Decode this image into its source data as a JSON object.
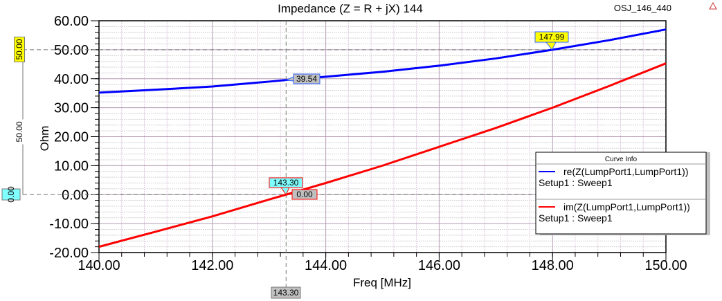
{
  "header": {
    "project": "OSJ_146_440",
    "logo_icon": "ansoft-logo-icon"
  },
  "chart_data": {
    "type": "line",
    "title": "Impedance (Z = R + jX) 144",
    "xlabel": "Freq [MHz]",
    "ylabel": "Ohm",
    "xlim": [
      140,
      150
    ],
    "ylim": [
      -20,
      60
    ],
    "xticks": [
      "140.00",
      "142.00",
      "144.00",
      "146.00",
      "148.00",
      "150.00"
    ],
    "yticks": [
      "60.00",
      "50.00",
      "40.00",
      "30.00",
      "20.00",
      "10.00",
      "0.00",
      "-10.00",
      "-20.00"
    ],
    "grid": true,
    "legend": {
      "title": "Curve Info",
      "placement": "right",
      "entries": [
        {
          "name": "re(Z(LumpPort1,LumpPort1))",
          "sub": "Setup1 : Sweep1",
          "color": "#0000ff"
        },
        {
          "name": "im(Z(LumpPort1,LumpPort1))",
          "sub": "Setup1 : Sweep1",
          "color": "#ff0000"
        }
      ]
    },
    "x": [
      140,
      141,
      142,
      143,
      143.3,
      144,
      145,
      146,
      147,
      148,
      149,
      150
    ],
    "series": [
      {
        "name": "re(Z(LumpPort1,LumpPort1))",
        "color": "#0000ff",
        "values": [
          35.2,
          36.2,
          37.3,
          39.0,
          39.54,
          40.7,
          42.4,
          44.5,
          47.0,
          50.0,
          53.3,
          57.0
        ]
      },
      {
        "name": "im(Z(LumpPort1,LumpPort1))",
        "color": "#ff0000",
        "values": [
          -18.0,
          -12.8,
          -7.5,
          -1.7,
          0.0,
          4.0,
          10.0,
          16.5,
          23.0,
          30.0,
          37.5,
          45.3
        ]
      }
    ],
    "markers": {
      "x_marker": {
        "x": 143.3,
        "label": "143.30"
      },
      "re_at_marker": {
        "label": "39.54"
      },
      "im_at_marker": {
        "label": "0.00"
      },
      "im_cross": {
        "label": "143.30"
      },
      "re_cross": {
        "x": 147.99,
        "label": "147.99"
      },
      "y_marker_50": {
        "y": 50,
        "label": "50.00"
      },
      "y_marker_0": {
        "y": 0,
        "label": "0.00"
      },
      "y_delta": {
        "label": "50.00"
      }
    }
  }
}
